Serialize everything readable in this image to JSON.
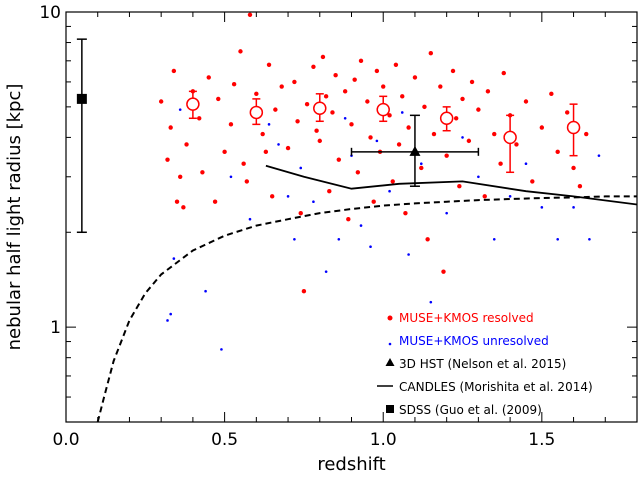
{
  "chart_data": {
    "type": "scatter",
    "xlabel": "redshift",
    "ylabel": "nebular half light radius [kpc]",
    "xlim": [
      0.0,
      1.8
    ],
    "ylim": [
      0.5,
      10
    ],
    "yscale": "log",
    "xticks": [
      0.0,
      0.5,
      1.0,
      1.5
    ],
    "xtick_labels": [
      "0.0",
      "0.5",
      "1.0",
      "1.5"
    ],
    "yticks": [
      1,
      10
    ],
    "ytick_labels": [
      "1",
      "10"
    ],
    "colors": {
      "resolved": "#ff0000",
      "unresolved": "#0000ff",
      "other": "#000000"
    },
    "legend": [
      {
        "label": "MUSE+KMOS resolved",
        "marker": "red-dot",
        "color": "#ff0000"
      },
      {
        "label": "MUSE+KMOS unresolved",
        "marker": "blue-dot",
        "color": "#0000ff"
      },
      {
        "label": "3D HST (Nelson et al. 2015)",
        "marker": "triangle",
        "color": "#000000"
      },
      {
        "label": "CANDLES (Morishita et al. 2014)",
        "marker": "line",
        "color": "#000000"
      },
      {
        "label": "SDSS (Guo et al. (2009)",
        "marker": "square",
        "color": "#000000"
      }
    ],
    "series": [
      {
        "name": "MUSE+KMOS resolved",
        "kind": "points",
        "points": [
          [
            0.3,
            5.2
          ],
          [
            0.32,
            3.4
          ],
          [
            0.33,
            4.3
          ],
          [
            0.34,
            6.5
          ],
          [
            0.35,
            2.5
          ],
          [
            0.36,
            3.0
          ],
          [
            0.37,
            2.4
          ],
          [
            0.38,
            3.8
          ],
          [
            0.4,
            5.6
          ],
          [
            0.42,
            4.6
          ],
          [
            0.43,
            3.1
          ],
          [
            0.45,
            6.2
          ],
          [
            0.47,
            2.5
          ],
          [
            0.48,
            5.3
          ],
          [
            0.5,
            3.6
          ],
          [
            0.52,
            4.4
          ],
          [
            0.53,
            5.9
          ],
          [
            0.55,
            7.5
          ],
          [
            0.56,
            3.3
          ],
          [
            0.57,
            2.9
          ],
          [
            0.58,
            9.8
          ],
          [
            0.6,
            5.5
          ],
          [
            0.62,
            4.1
          ],
          [
            0.63,
            3.6
          ],
          [
            0.64,
            6.8
          ],
          [
            0.65,
            2.6
          ],
          [
            0.66,
            4.9
          ],
          [
            0.68,
            5.8
          ],
          [
            0.7,
            3.7
          ],
          [
            0.72,
            6.0
          ],
          [
            0.73,
            4.5
          ],
          [
            0.74,
            2.3
          ],
          [
            0.75,
            1.3
          ],
          [
            0.76,
            5.1
          ],
          [
            0.78,
            6.7
          ],
          [
            0.79,
            4.2
          ],
          [
            0.8,
            3.9
          ],
          [
            0.81,
            7.2
          ],
          [
            0.82,
            5.4
          ],
          [
            0.83,
            2.7
          ],
          [
            0.84,
            4.8
          ],
          [
            0.85,
            6.3
          ],
          [
            0.86,
            3.4
          ],
          [
            0.88,
            5.6
          ],
          [
            0.89,
            2.2
          ],
          [
            0.9,
            4.4
          ],
          [
            0.91,
            6.1
          ],
          [
            0.92,
            3.1
          ],
          [
            0.93,
            7.0
          ],
          [
            0.95,
            5.2
          ],
          [
            0.96,
            4.0
          ],
          [
            0.97,
            2.5
          ],
          [
            0.98,
            6.5
          ],
          [
            0.99,
            3.6
          ],
          [
            1.0,
            5.8
          ],
          [
            1.02,
            4.7
          ],
          [
            1.03,
            2.9
          ],
          [
            1.04,
            6.8
          ],
          [
            1.05,
            3.8
          ],
          [
            1.06,
            5.4
          ],
          [
            1.07,
            2.3
          ],
          [
            1.08,
            4.3
          ],
          [
            1.1,
            6.2
          ],
          [
            1.12,
            3.2
          ],
          [
            1.13,
            5.0
          ],
          [
            1.14,
            1.9
          ],
          [
            1.15,
            7.4
          ],
          [
            1.16,
            4.1
          ],
          [
            1.18,
            5.8
          ],
          [
            1.19,
            1.5
          ],
          [
            1.2,
            3.5
          ],
          [
            1.22,
            6.5
          ],
          [
            1.23,
            4.6
          ],
          [
            1.24,
            2.8
          ],
          [
            1.25,
            5.3
          ],
          [
            1.27,
            3.9
          ],
          [
            1.28,
            6.0
          ],
          [
            1.3,
            4.9
          ],
          [
            1.32,
            2.6
          ],
          [
            1.33,
            5.6
          ],
          [
            1.35,
            4.1
          ],
          [
            1.37,
            3.3
          ],
          [
            1.38,
            6.4
          ],
          [
            1.4,
            4.7
          ],
          [
            1.42,
            3.8
          ],
          [
            1.45,
            5.2
          ],
          [
            1.47,
            2.9
          ],
          [
            1.5,
            4.3
          ],
          [
            1.53,
            5.5
          ],
          [
            1.55,
            3.6
          ],
          [
            1.58,
            4.8
          ],
          [
            1.6,
            3.2
          ],
          [
            1.62,
            2.8
          ],
          [
            1.64,
            4.1
          ]
        ]
      },
      {
        "name": "MUSE+KMOS unresolved",
        "kind": "points",
        "points": [
          [
            0.32,
            1.05
          ],
          [
            0.33,
            1.1
          ],
          [
            0.34,
            1.65
          ],
          [
            0.36,
            4.9
          ],
          [
            0.44,
            1.3
          ],
          [
            0.49,
            0.85
          ],
          [
            0.52,
            3.0
          ],
          [
            0.58,
            2.2
          ],
          [
            0.64,
            4.4
          ],
          [
            0.67,
            3.8
          ],
          [
            0.7,
            2.6
          ],
          [
            0.72,
            1.9
          ],
          [
            0.74,
            3.2
          ],
          [
            0.78,
            2.5
          ],
          [
            0.82,
            1.5
          ],
          [
            0.86,
            1.9
          ],
          [
            0.88,
            4.6
          ],
          [
            0.9,
            3.5
          ],
          [
            0.93,
            2.1
          ],
          [
            0.96,
            1.8
          ],
          [
            0.98,
            3.9
          ],
          [
            1.02,
            2.7
          ],
          [
            1.06,
            4.8
          ],
          [
            1.08,
            1.7
          ],
          [
            1.12,
            3.3
          ],
          [
            1.15,
            1.2
          ],
          [
            1.2,
            2.3
          ],
          [
            1.25,
            4.0
          ],
          [
            1.3,
            3.0
          ],
          [
            1.35,
            1.9
          ],
          [
            1.4,
            2.6
          ],
          [
            1.45,
            3.3
          ],
          [
            1.5,
            2.4
          ],
          [
            1.55,
            1.9
          ],
          [
            1.6,
            2.4
          ],
          [
            1.65,
            1.9
          ],
          [
            1.68,
            3.5
          ]
        ]
      },
      {
        "name": "MUSE+KMOS binned",
        "kind": "points_with_errors",
        "points": [
          {
            "x": 0.4,
            "y": 5.1,
            "ylo": 4.6,
            "yhi": 5.6
          },
          {
            "x": 0.6,
            "y": 4.8,
            "ylo": 4.4,
            "yhi": 5.3
          },
          {
            "x": 0.8,
            "y": 4.95,
            "ylo": 4.5,
            "yhi": 5.5
          },
          {
            "x": 1.0,
            "y": 4.9,
            "ylo": 4.5,
            "yhi": 5.4
          },
          {
            "x": 1.2,
            "y": 4.6,
            "ylo": 4.2,
            "yhi": 5.0
          },
          {
            "x": 1.4,
            "y": 4.0,
            "ylo": 3.1,
            "yhi": 4.7
          },
          {
            "x": 1.6,
            "y": 4.3,
            "ylo": 3.5,
            "yhi": 5.1
          }
        ]
      },
      {
        "name": "3D HST (Nelson et al. 2015)",
        "kind": "point",
        "x": 1.1,
        "y": 3.6,
        "xlo": 0.9,
        "xhi": 1.3,
        "ylo": 2.8,
        "yhi": 4.7
      },
      {
        "name": "CANDLES (Morishita et al. 2014)",
        "kind": "line",
        "points": [
          [
            0.63,
            3.25
          ],
          [
            0.75,
            3.0
          ],
          [
            0.9,
            2.75
          ],
          [
            1.05,
            2.85
          ],
          [
            1.25,
            2.9
          ],
          [
            1.45,
            2.7
          ],
          [
            1.6,
            2.6
          ],
          [
            1.8,
            2.45
          ]
        ]
      },
      {
        "name": "SDSS (Guo et al. (2009)",
        "kind": "point",
        "x": 0.05,
        "y": 5.3,
        "ylo": 2.0,
        "yhi": 8.2
      },
      {
        "name": "angular resolution limit",
        "kind": "dashed",
        "points": [
          [
            0.1,
            0.5
          ],
          [
            0.12,
            0.6
          ],
          [
            0.15,
            0.78
          ],
          [
            0.2,
            1.05
          ],
          [
            0.25,
            1.28
          ],
          [
            0.3,
            1.47
          ],
          [
            0.4,
            1.75
          ],
          [
            0.5,
            1.95
          ],
          [
            0.6,
            2.1
          ],
          [
            0.7,
            2.2
          ],
          [
            0.8,
            2.3
          ],
          [
            0.9,
            2.37
          ],
          [
            1.0,
            2.43
          ],
          [
            1.1,
            2.47
          ],
          [
            1.2,
            2.5
          ],
          [
            1.3,
            2.53
          ],
          [
            1.4,
            2.55
          ],
          [
            1.5,
            2.57
          ],
          [
            1.6,
            2.58
          ],
          [
            1.7,
            2.6
          ],
          [
            1.8,
            2.6
          ]
        ]
      }
    ]
  }
}
